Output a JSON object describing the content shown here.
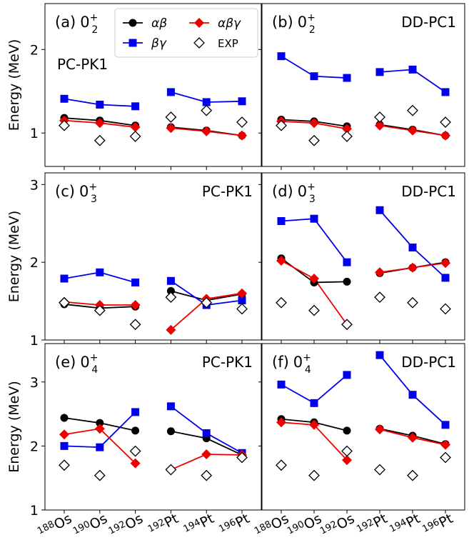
{
  "x_labels": [
    {
      "mass": "188",
      "element": "Os"
    },
    {
      "mass": "190",
      "element": "Os"
    },
    {
      "mass": "192",
      "element": "Os"
    },
    {
      "mass": "192",
      "element": "Pt"
    },
    {
      "mass": "194",
      "element": "Pt"
    },
    {
      "mass": "196",
      "element": "Pt"
    }
  ],
  "ylabel": "Energy (MeV)",
  "legend": {
    "placement": "top of panel (a)",
    "entries": [
      {
        "key": "ab",
        "label": "αβ"
      },
      {
        "key": "abg",
        "label": "αβγ"
      },
      {
        "key": "bg",
        "label": "βγ"
      },
      {
        "key": "exp",
        "label": "EXP"
      }
    ]
  },
  "series_styles": {
    "ab": {
      "color": "#000000",
      "marker": "circle"
    },
    "bg": {
      "color": "#0000ee",
      "marker": "square"
    },
    "abg": {
      "color": "#ee0000",
      "marker": "diamond"
    },
    "exp": {
      "color": "#000000",
      "marker": "open-diamond"
    }
  },
  "chart_data": [
    {
      "type": "line",
      "panel_label": "(a)",
      "state": {
        "base": "0",
        "sub": "2",
        "sup": "+"
      },
      "model": "PC-PK1",
      "ylim": [
        0.6,
        2.55
      ],
      "yticks": [
        1,
        2
      ],
      "series": [
        {
          "key": "ab",
          "values": [
            1.18,
            1.15,
            1.09,
            1.07,
            1.03,
            0.97
          ]
        },
        {
          "key": "bg",
          "values": [
            1.41,
            1.34,
            1.32,
            1.49,
            1.37,
            1.38
          ]
        },
        {
          "key": "abg",
          "values": [
            1.15,
            1.12,
            1.07,
            1.06,
            1.02,
            0.97
          ]
        },
        {
          "key": "exp",
          "values": [
            1.09,
            0.91,
            0.96,
            1.19,
            1.27,
            1.13
          ]
        }
      ]
    },
    {
      "type": "line",
      "panel_label": "(b)",
      "state": {
        "base": "0",
        "sub": "2",
        "sup": "+"
      },
      "model": "DD-PC1",
      "ylim": [
        0.6,
        2.55
      ],
      "yticks": [
        1,
        2
      ],
      "series": [
        {
          "key": "ab",
          "values": [
            1.16,
            1.14,
            1.08,
            1.1,
            1.04,
            0.97
          ]
        },
        {
          "key": "bg",
          "values": [
            1.92,
            1.68,
            1.66,
            1.73,
            1.76,
            1.49
          ]
        },
        {
          "key": "abg",
          "values": [
            1.14,
            1.12,
            1.05,
            1.09,
            1.03,
            0.97
          ]
        },
        {
          "key": "exp",
          "values": [
            1.09,
            0.91,
            0.96,
            1.19,
            1.27,
            1.13
          ]
        }
      ]
    },
    {
      "type": "line",
      "panel_label": "(c)",
      "state": {
        "base": "0",
        "sub": "3",
        "sup": "+"
      },
      "model": "PC-PK1",
      "ylim": [
        1.0,
        3.15
      ],
      "yticks": [
        1,
        2,
        3
      ],
      "series": [
        {
          "key": "ab",
          "values": [
            1.46,
            1.41,
            1.43,
            1.63,
            1.51,
            1.59
          ]
        },
        {
          "key": "bg",
          "values": [
            1.79,
            1.87,
            1.74,
            1.76,
            1.45,
            1.51
          ]
        },
        {
          "key": "abg",
          "values": [
            1.49,
            1.45,
            1.45,
            1.13,
            1.53,
            1.6
          ]
        },
        {
          "key": "exp",
          "values": [
            1.48,
            1.38,
            1.2,
            1.55,
            1.48,
            1.4
          ]
        }
      ]
    },
    {
      "type": "line",
      "panel_label": "(d)",
      "state": {
        "base": "0",
        "sub": "3",
        "sup": "+"
      },
      "model": "DD-PC1",
      "ylim": [
        1.0,
        3.15
      ],
      "yticks": [
        1,
        2,
        3
      ],
      "series": [
        {
          "key": "ab",
          "values": [
            2.05,
            1.74,
            1.75,
            1.86,
            1.93,
            2.0
          ]
        },
        {
          "key": "bg",
          "values": [
            2.53,
            2.56,
            2.0,
            2.67,
            2.19,
            1.8
          ]
        },
        {
          "key": "abg",
          "values": [
            2.02,
            1.79,
            1.2,
            1.87,
            1.93,
            1.99
          ]
        },
        {
          "key": "exp",
          "values": [
            1.48,
            1.38,
            1.2,
            1.55,
            1.48,
            1.4
          ]
        }
      ]
    },
    {
      "type": "line",
      "panel_label": "(e)",
      "state": {
        "base": "0",
        "sub": "4",
        "sup": "+"
      },
      "model": "PC-PK1",
      "ylim": [
        1.0,
        3.6
      ],
      "yticks": [
        1,
        2,
        3
      ],
      "series": [
        {
          "key": "ab",
          "values": [
            2.44,
            2.36,
            2.24,
            2.23,
            2.12,
            1.86
          ]
        },
        {
          "key": "bg",
          "values": [
            2.0,
            1.98,
            2.53,
            2.62,
            2.2,
            1.89
          ]
        },
        {
          "key": "abg",
          "values": [
            2.18,
            2.27,
            1.73,
            1.63,
            1.87,
            1.86
          ]
        },
        {
          "key": "exp",
          "values": [
            1.7,
            1.54,
            1.92,
            1.63,
            1.54,
            1.82
          ]
        }
      ]
    },
    {
      "type": "line",
      "panel_label": "(f)",
      "state": {
        "base": "0",
        "sub": "4",
        "sup": "+"
      },
      "model": "DD-PC1",
      "ylim": [
        1.0,
        3.6
      ],
      "yticks": [
        1,
        2,
        3
      ],
      "series": [
        {
          "key": "ab",
          "values": [
            2.42,
            2.37,
            2.24,
            2.27,
            2.16,
            2.03
          ]
        },
        {
          "key": "bg",
          "values": [
            2.96,
            2.67,
            3.11,
            3.42,
            2.8,
            2.33
          ]
        },
        {
          "key": "abg",
          "values": [
            2.37,
            2.33,
            1.78,
            2.26,
            2.13,
            2.02
          ]
        },
        {
          "key": "exp",
          "values": [
            1.7,
            1.54,
            1.92,
            1.63,
            1.54,
            1.82
          ]
        }
      ]
    }
  ]
}
